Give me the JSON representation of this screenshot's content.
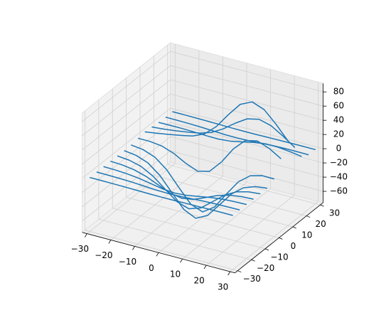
{
  "chart_data": {
    "type": "wireframe3d",
    "x": [
      -30,
      -25,
      -20,
      -15,
      -10,
      -5,
      0,
      5,
      10,
      15,
      20,
      25,
      30
    ],
    "y": [
      -30,
      -25,
      -20,
      -15,
      -10,
      -5,
      0,
      5,
      10,
      15,
      20,
      25,
      30
    ],
    "z": [
      [
        0,
        0,
        -0.1,
        -0.3,
        -0.5,
        -0.8,
        -0.9,
        -0.8,
        -0.5,
        -0.3,
        -0.1,
        0,
        0
      ],
      [
        0,
        -0.2,
        -0.5,
        -1.1,
        -2.1,
        -3.1,
        -3.5,
        -3.1,
        -2.1,
        -1.1,
        -0.5,
        -0.2,
        0
      ],
      [
        -0.1,
        -0.5,
        -1.5,
        -3.5,
        -6.5,
        -9.5,
        -10.8,
        -9.5,
        -6.5,
        -3.5,
        -1.5,
        -0.5,
        -0.1
      ],
      [
        -0.3,
        -1.1,
        -3.5,
        -8.4,
        -15.7,
        -22.8,
        -25.8,
        -22.8,
        -15.7,
        -8.4,
        -3.5,
        -1.1,
        -0.3
      ],
      [
        -0.5,
        -2.1,
        -6.5,
        -15.7,
        -29.3,
        -42.6,
        -48.2,
        -42.6,
        -29.2,
        -15.6,
        -6.5,
        -2.1,
        -0.5
      ],
      [
        -0.8,
        -3.0,
        -9.3,
        -22.5,
        -42.1,
        -61.3,
        -69.3,
        -60.9,
        -41.4,
        -21.7,
        -8.6,
        -2.4,
        -0.3
      ],
      [
        -0.5,
        -2.6,
        -8.8,
        -22.3,
        -42.4,
        -61.5,
        -68.1,
        -56.7,
        -33.9,
        -12.3,
        0.7,
        5.2,
        5.0
      ],
      [
        1.1,
        1.2,
        -0.8,
        -6.8,
        -16.1,
        -23.0,
        -18.7,
        -1.1,
        21.8,
        38.1,
        42.0,
        36.0,
        25.7
      ],
      [
        2.5,
        4.9,
        7.8,
        10.8,
        14.4,
        21.8,
        36.7,
        57.8,
        76.8,
        84.7,
        78.4,
        62.2,
        43.1
      ],
      [
        1.6,
        3.1,
        5.2,
        7.7,
        10.8,
        16.2,
        25.7,
        38.1,
        48.7,
        52.5,
        48.0,
        37.9,
        26.2
      ],
      [
        0.3,
        0.5,
        0.5,
        0.1,
        -0.6,
        -0.8,
        0.7,
        4.1,
        7.8,
        10.1,
        10.0,
        8.2,
        5.8
      ],
      [
        0,
        -0.1,
        -0.3,
        -0.8,
        -1.6,
        -2.4,
        -2.6,
        -2.0,
        -0.9,
        0,
        0.5,
        0.6,
        0.4
      ],
      [
        0,
        0,
        -0.1,
        -0.3,
        -0.5,
        -0.8,
        -0.9,
        -0.8,
        -0.5,
        -0.3,
        -0.1,
        0,
        0
      ]
    ],
    "color": "#1f77b4",
    "xlim": [
      -32,
      32
    ],
    "ylim": [
      -32,
      32
    ],
    "zlim": [
      -76,
      92
    ],
    "xticks": [
      {
        "value": -30,
        "label": "−30"
      },
      {
        "value": -20,
        "label": "−20"
      },
      {
        "value": -10,
        "label": "−10"
      },
      0,
      10,
      20,
      30
    ],
    "yticks": [
      {
        "value": -30,
        "label": "−30"
      },
      {
        "value": -20,
        "label": "−20"
      },
      {
        "value": -10,
        "label": "−10"
      },
      0,
      10,
      20,
      30
    ],
    "zticks": [
      {
        "value": -60,
        "label": "−60"
      },
      {
        "value": -40,
        "label": "−40"
      },
      {
        "value": -20,
        "label": "−20"
      },
      0,
      20,
      40,
      60,
      80
    ],
    "grid": true
  }
}
